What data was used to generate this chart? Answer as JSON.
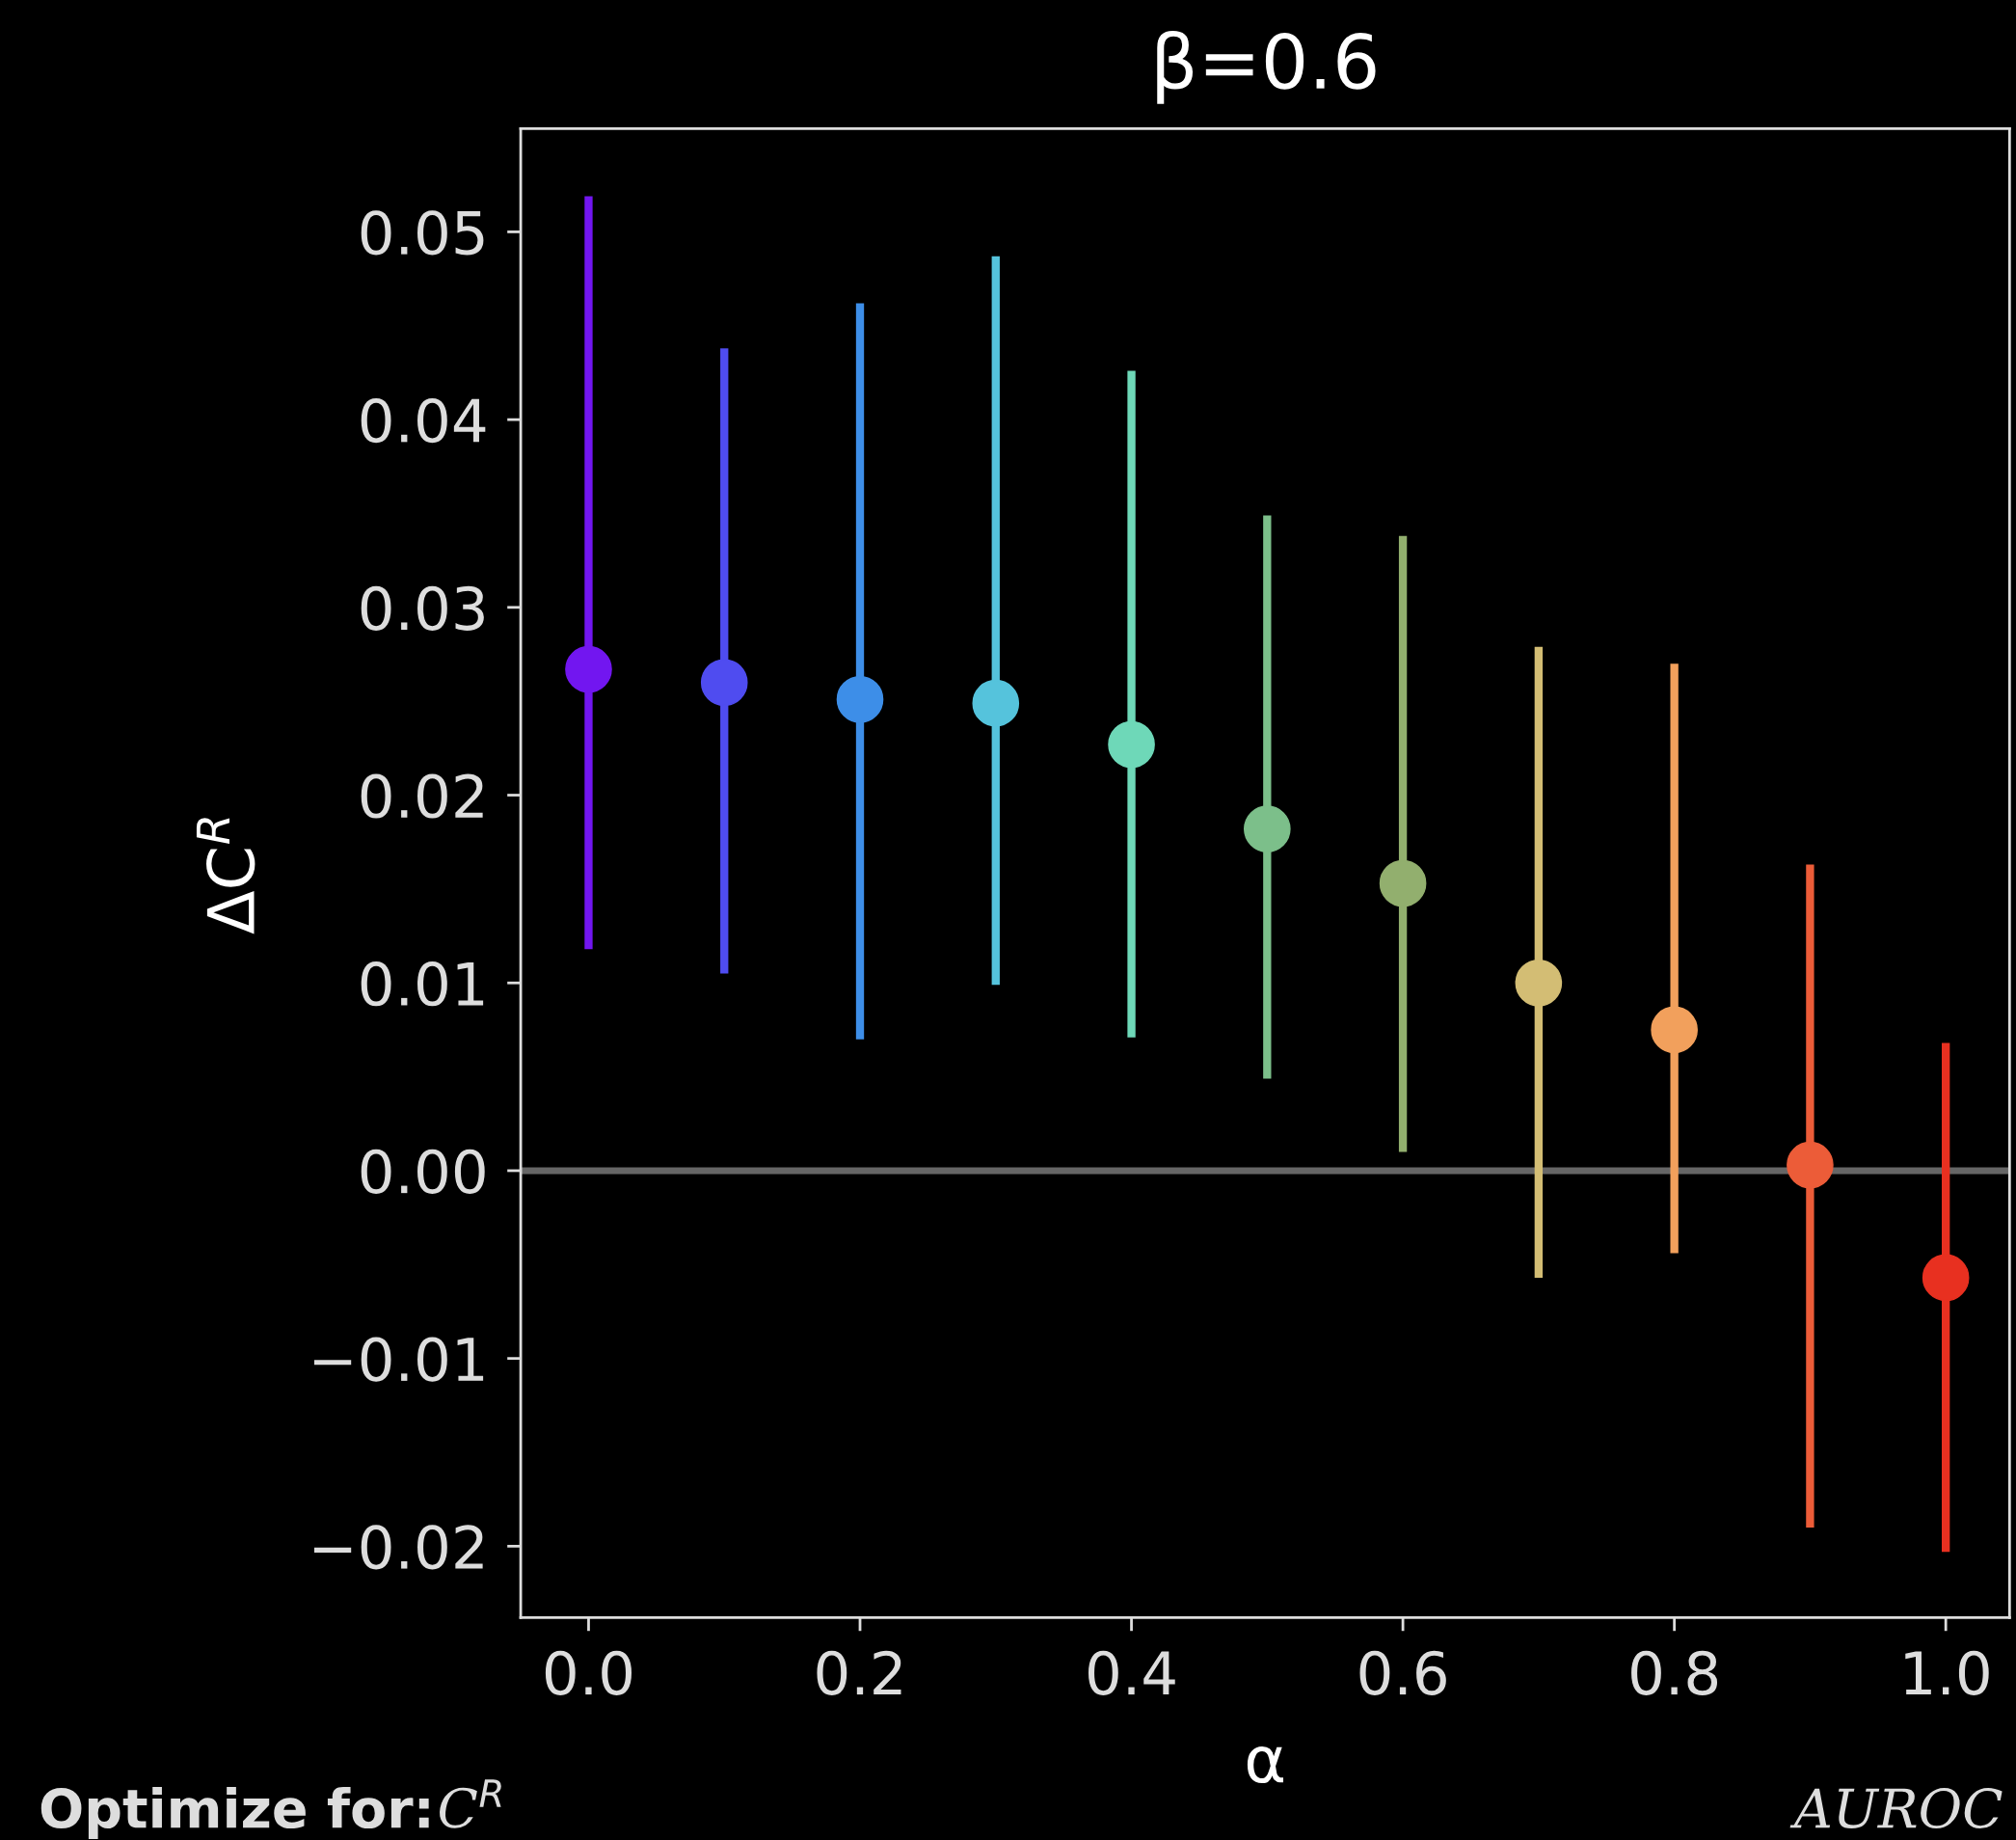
{
  "chart_data": {
    "type": "scatter",
    "title": "β=0.6",
    "xlabel": "α",
    "ylabel": "ΔC$^{R}$",
    "x": [
      0.0,
      0.1,
      0.2,
      0.3,
      0.4,
      0.5,
      0.6,
      0.7,
      0.8,
      0.9,
      1.0
    ],
    "values": [
      0.0267,
      0.026,
      0.0251,
      0.0249,
      0.0227,
      0.0182,
      0.0153,
      0.01,
      0.0075,
      0.0003,
      -0.0057
    ],
    "errors": [
      [
        0.0118,
        0.0519
      ],
      [
        0.0105,
        0.0438
      ],
      [
        0.007,
        0.0462
      ],
      [
        0.0099,
        0.0487
      ],
      [
        0.0071,
        0.0426
      ],
      [
        0.0049,
        0.0349
      ],
      [
        0.001,
        0.0338
      ],
      [
        -0.0057,
        0.0279
      ],
      [
        -0.0044,
        0.027
      ],
      [
        -0.019,
        0.0163
      ],
      [
        -0.0203,
        0.0068
      ]
    ],
    "colors": [
      "#7216f0",
      "#4f4cf0",
      "#3d8ee8",
      "#55c3dc",
      "#6ed8b8",
      "#7cbf8a",
      "#92af6e",
      "#d3bd74",
      "#f2a05c",
      "#ec5c38",
      "#e83020"
    ],
    "marker": "circle",
    "xlim": [
      -0.05,
      1.047
    ],
    "ylim": [
      -0.0238,
      0.0555
    ],
    "xticks": [
      {
        "value": 0.0,
        "label": "0.0"
      },
      {
        "value": 0.2,
        "label": "0.2"
      },
      {
        "value": 0.4,
        "label": "0.4"
      },
      {
        "value": 0.6,
        "label": "0.6"
      },
      {
        "value": 0.8,
        "label": "0.8"
      },
      {
        "value": 1.0,
        "label": "1.0"
      }
    ],
    "yticks": [
      {
        "value": -0.02,
        "label": "−0.02"
      },
      {
        "value": -0.01,
        "label": "−0.01"
      },
      {
        "value": 0.0,
        "label": "0.00"
      },
      {
        "value": 0.01,
        "label": "0.01"
      },
      {
        "value": 0.02,
        "label": "0.02"
      },
      {
        "value": 0.03,
        "label": "0.03"
      },
      {
        "value": 0.04,
        "label": "0.04"
      },
      {
        "value": 0.05,
        "label": "0.05"
      }
    ],
    "ref_lines": [
      {
        "axis": "y",
        "value": 0,
        "color": "#666666"
      }
    ],
    "grid": false,
    "legend": false,
    "annotations": [
      "Optimize for:",
      "C$^{R}$",
      "AUROC"
    ]
  }
}
